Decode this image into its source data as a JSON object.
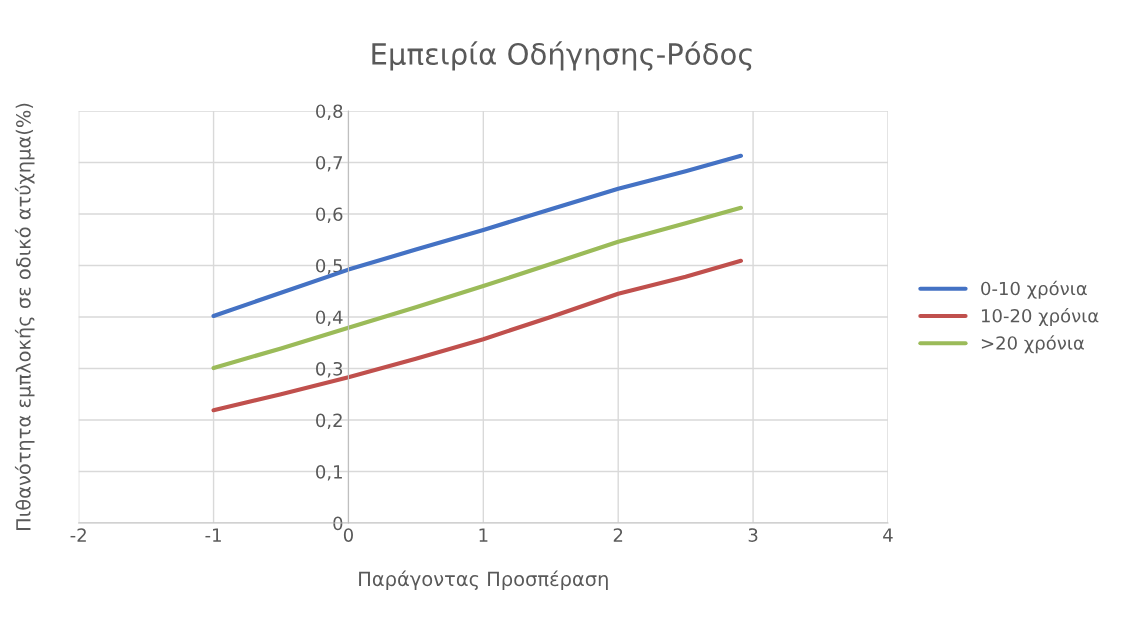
{
  "chart_data": {
    "type": "line",
    "title": "Εμπειρία Οδήγησης-Ρόδος",
    "xlabel": "Παράγοντας Προσπέραση",
    "ylabel": "Πιθανότητα εμπλοκής σε οδικό ατύχημα(%)",
    "xlim": [
      -2,
      4
    ],
    "xticks": [
      -2,
      -1,
      0,
      1,
      2,
      3,
      4
    ],
    "ylim": [
      0,
      0.8
    ],
    "yticks": [
      {
        "value": 0,
        "label": "0"
      },
      {
        "value": 0.1,
        "label": "0,1"
      },
      {
        "value": 0.2,
        "label": "0,2"
      },
      {
        "value": 0.3,
        "label": "0,3"
      },
      {
        "value": 0.4,
        "label": "0,4"
      },
      {
        "value": 0.5,
        "label": "0,5"
      },
      {
        "value": 0.6,
        "label": "0,6"
      },
      {
        "value": 0.7,
        "label": "0,7"
      },
      {
        "value": 0.8,
        "label": "0,8"
      }
    ],
    "x": [
      -1.0,
      -0.5,
      0,
      0.5,
      1,
      1.5,
      2,
      2.5,
      2.91
    ],
    "series": [
      {
        "name": "0-10 χρόνια",
        "color": "#4472c4",
        "values": [
          0.402,
          0.447,
          0.492,
          0.531,
          0.569,
          0.609,
          0.649,
          0.683,
          0.713
        ]
      },
      {
        "name": "10-20 χρόνια",
        "color": "#c0504d",
        "values": [
          0.219,
          0.25,
          0.283,
          0.319,
          0.357,
          0.4,
          0.445,
          0.478,
          0.509
        ]
      },
      {
        "name": ">20 χρόνια",
        "color": "#9bbb59",
        "values": [
          0.301,
          0.339,
          0.379,
          0.419,
          0.46,
          0.503,
          0.546,
          0.582,
          0.612
        ]
      }
    ],
    "grid": true,
    "legend": "right",
    "marker": "none",
    "line_style": "solid"
  }
}
